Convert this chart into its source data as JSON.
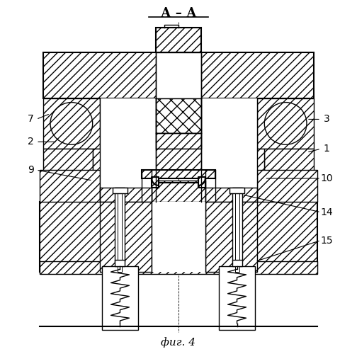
{
  "bg_color": "#ffffff",
  "line_color": "#000000",
  "title": "А – А",
  "caption": "фиг. 4"
}
